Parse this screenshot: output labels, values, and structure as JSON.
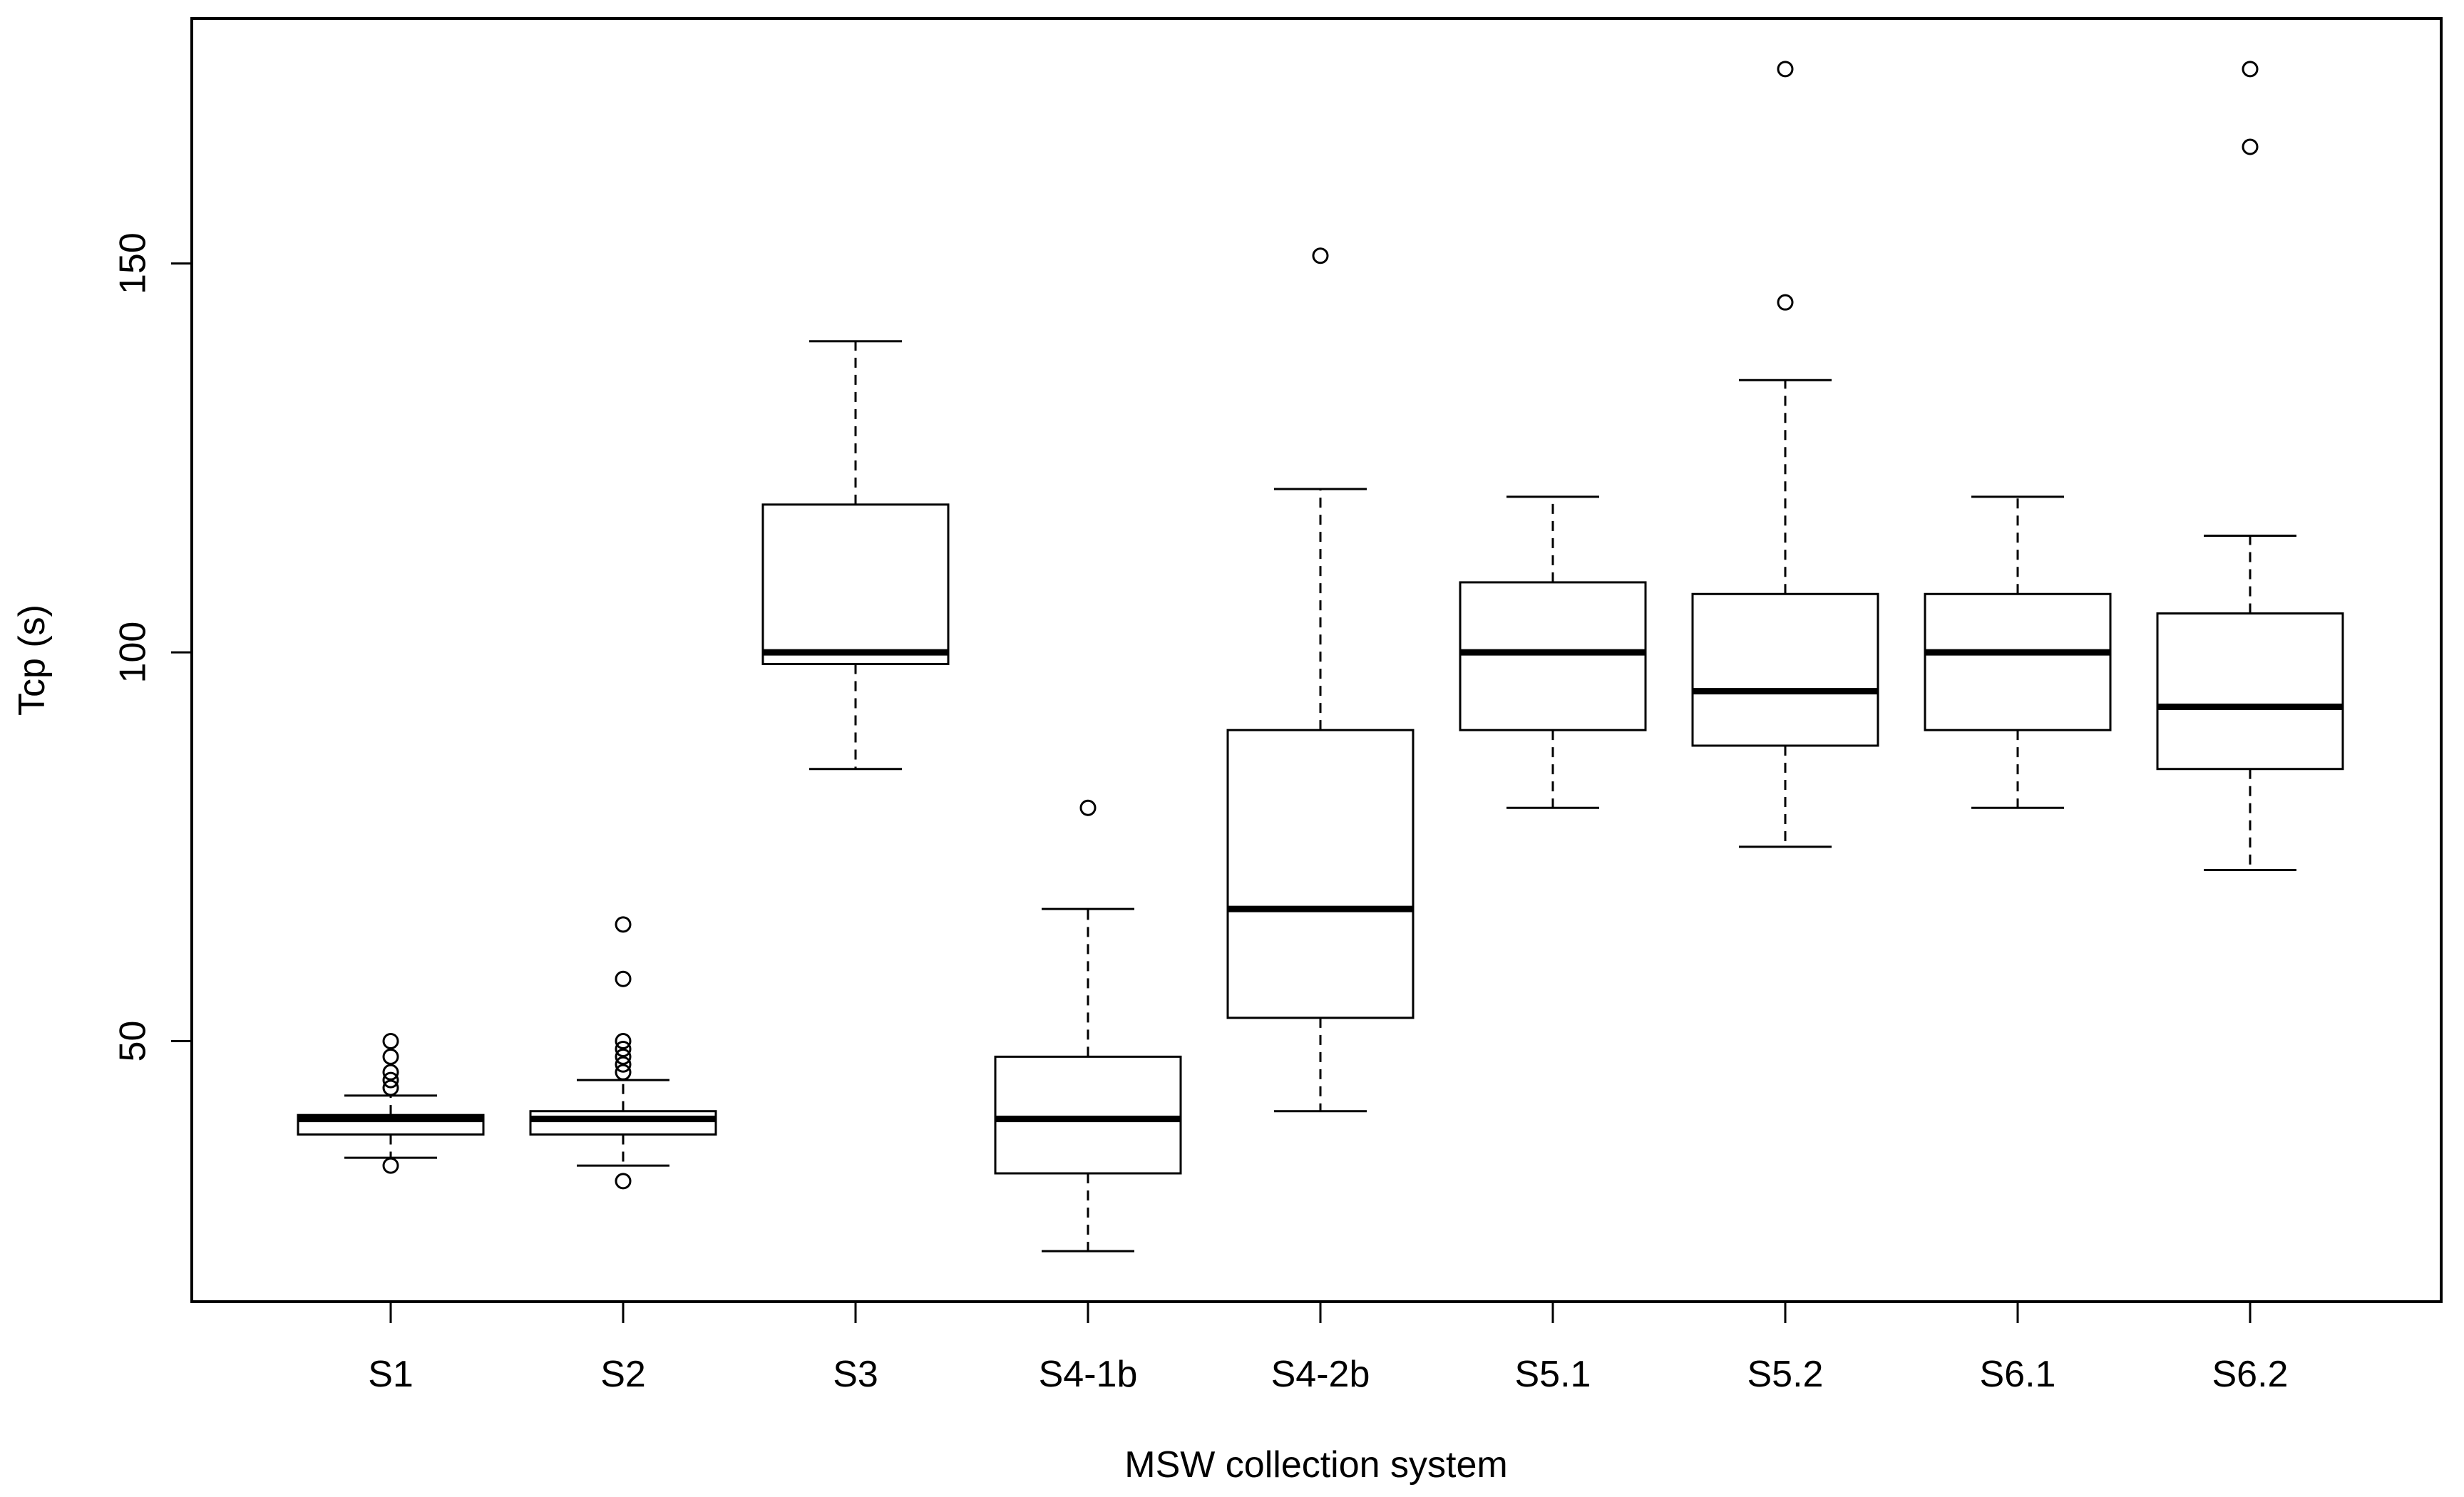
{
  "chart_data": {
    "type": "boxplot",
    "title": "",
    "xlabel": "MSW collection system",
    "ylabel": "Tcp (s)",
    "ylim": [
      16.5,
      181.5
    ],
    "yticks": [
      50,
      100,
      150
    ],
    "categories": [
      "S1",
      "S2",
      "S3",
      "S4-1b",
      "S4-2b",
      "S5.1",
      "S5.2",
      "S6.1",
      "S6.2"
    ],
    "boxes": [
      {
        "name": "S1",
        "whisker_low": 35,
        "q1": 38,
        "median": 40,
        "q3": 40.5,
        "whisker_high": 43,
        "outliers": [
          50,
          48,
          46,
          45,
          44,
          34
        ]
      },
      {
        "name": "S2",
        "whisker_low": 34,
        "q1": 38,
        "median": 40,
        "q3": 41,
        "whisker_high": 45,
        "outliers": [
          65,
          58,
          50,
          49,
          48,
          47,
          46,
          32
        ]
      },
      {
        "name": "S3",
        "whisker_low": 85,
        "q1": 98.5,
        "median": 100,
        "q3": 119,
        "whisker_high": 140,
        "outliers": []
      },
      {
        "name": "S4-1b",
        "whisker_low": 23,
        "q1": 33,
        "median": 40,
        "q3": 48,
        "whisker_high": 67,
        "outliers": [
          80
        ]
      },
      {
        "name": "S4-2b",
        "whisker_low": 41,
        "q1": 53,
        "median": 67,
        "q3": 90,
        "whisker_high": 121,
        "outliers": [
          151
        ]
      },
      {
        "name": "S5.1",
        "whisker_low": 80,
        "q1": 90,
        "median": 100,
        "q3": 109,
        "whisker_high": 120,
        "outliers": []
      },
      {
        "name": "S5.2",
        "whisker_low": 75,
        "q1": 88,
        "median": 95,
        "q3": 107.5,
        "whisker_high": 135,
        "outliers": [
          175,
          145
        ]
      },
      {
        "name": "S6.1",
        "whisker_low": 80,
        "q1": 90,
        "median": 100,
        "q3": 107.5,
        "whisker_high": 120,
        "outliers": []
      },
      {
        "name": "S6.2",
        "whisker_low": 72,
        "q1": 85,
        "median": 93,
        "q3": 105,
        "whisker_high": 115,
        "outliers": [
          175,
          165
        ]
      }
    ]
  }
}
